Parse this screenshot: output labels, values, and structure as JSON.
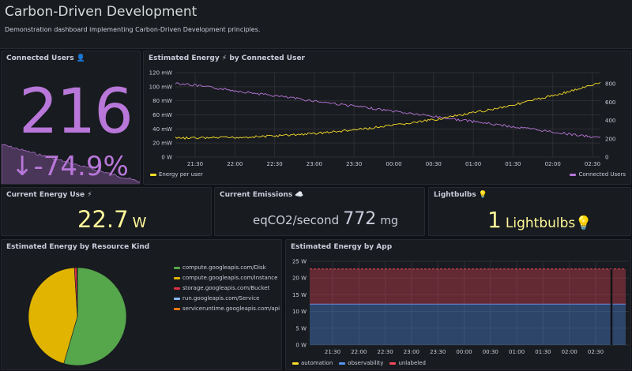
{
  "header": {
    "title": "Carbon-Driven Development",
    "description": "Demonstration dashboard implementing Carbon-Driven Development principles."
  },
  "connected_users": {
    "title": "Connected Users",
    "icon": "user-icon",
    "value": "216",
    "change": "-74.9%",
    "arrow_icon": "arrow-down-icon",
    "color": "#b877d9"
  },
  "energy_by_user": {
    "title": "Estimated Energy ⚡ by Connected User",
    "left_ticks": [
      "120 mW",
      "100 mW",
      "80 mW",
      "60 mW",
      "40 mW",
      "20 mW",
      "0 W"
    ],
    "right_ticks": [
      "800",
      "600",
      "400",
      "200",
      "0"
    ],
    "x_ticks": [
      "21:30",
      "22:00",
      "22:30",
      "23:00",
      "23:30",
      "00:00",
      "00:30",
      "01:00",
      "01:30",
      "02:00",
      "02:30"
    ],
    "legend_left": "Energy per user",
    "legend_right": "Connected Users",
    "colors": {
      "energy": "#fade2a",
      "users": "#b877d9"
    }
  },
  "current_energy": {
    "title": "Current Energy Use ⚡",
    "value": "22.7",
    "unit": "W",
    "color": "#fff899"
  },
  "current_emissions": {
    "title": "Current Emissions ☁️",
    "prefix": "eqCO2/second",
    "value": "772",
    "unit": "mg",
    "color": "#ccccdc"
  },
  "lightbulbs": {
    "title": "Lightbulbs 💡",
    "value": "1",
    "suffix": "Lightbulbs💡",
    "color": "#fff899"
  },
  "resource_kind": {
    "title": "Estimated Energy by Resource Kind",
    "legend": [
      {
        "label": "compute.googleapis.com/Disk",
        "color": "#56a64b"
      },
      {
        "label": "compute.googleapis.com/Instance",
        "color": "#e0b400"
      },
      {
        "label": "storage.googleapis.com/Bucket",
        "color": "#e02f44"
      },
      {
        "label": "run.googleapis.com/Service",
        "color": "#8ab8ff"
      },
      {
        "label": "serviceruntime.googleapis.com/api",
        "color": "#ff780a"
      }
    ]
  },
  "chart_data": [
    {
      "type": "pie",
      "categories": [
        "compute.googleapis.com/Disk",
        "compute.googleapis.com/Instance",
        "storage.googleapis.com/Bucket",
        "run.googleapis.com/Service",
        "serviceruntime.googleapis.com/api"
      ],
      "values": [
        54.5,
        44.5,
        0.8,
        0.1,
        0.1
      ]
    },
    {
      "type": "area",
      "title": "Estimated Energy by App",
      "x": [
        "21:30",
        "22:00",
        "22:30",
        "23:00",
        "23:30",
        "00:00",
        "00:30",
        "01:00",
        "01:30",
        "02:00",
        "02:30"
      ],
      "series": [
        {
          "name": "automation",
          "values": [
            0,
            0,
            0,
            0,
            0,
            0,
            0,
            0,
            0,
            0,
            0
          ],
          "color": "#fade2a"
        },
        {
          "name": "observability",
          "values": [
            12.2,
            12.2,
            12.2,
            12.2,
            12.2,
            12.2,
            12.2,
            12.2,
            12.2,
            12.2,
            12.2
          ],
          "color": "#5794f2"
        },
        {
          "name": "unlabeled",
          "values": [
            10.5,
            10.5,
            10.5,
            10.5,
            10.5,
            10.5,
            10.5,
            10.5,
            10.5,
            10.5,
            10.5
          ],
          "color": "#f2495c"
        }
      ],
      "y_ticks": [
        "25 W",
        "20 W",
        "15 W",
        "10 W",
        "5 W",
        "0 W"
      ],
      "ylim": [
        0,
        25
      ]
    }
  ]
}
